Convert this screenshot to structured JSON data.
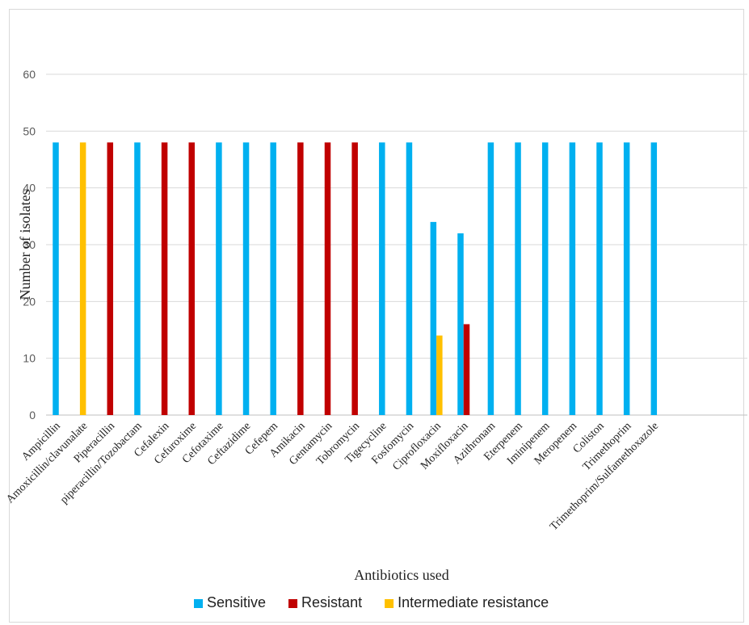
{
  "chart_data": {
    "type": "bar",
    "title": "",
    "xlabel": "Antibiotics  used",
    "ylabel": "Number of isolates",
    "ylim": [
      0,
      60
    ],
    "yticks": [
      0,
      10,
      20,
      30,
      40,
      50,
      60
    ],
    "grid": true,
    "legend_position": "bottom",
    "categories": [
      "Ampicillin",
      "Amoxicillin/clavunalate",
      "Piperacillin",
      "piperacillin/Tozobactam",
      "Cefalexin",
      "Cefuroxime",
      "Cefotaxime",
      "Ceftazidime",
      "Cefepem",
      "Amikacin",
      "Gentamycin",
      "Tobromycin",
      "Tigecycline",
      "Fosfomycin",
      "Ciprofloxacin",
      "Moxifloxacin",
      "Azithronam",
      "Eterpenem",
      "Iminipenem",
      "Meropenem",
      "Coliston",
      "Trimethoprim",
      "Trimethoprim/Sulfamethoxazole"
    ],
    "series": [
      {
        "name": "Sensitive",
        "color": "#00b0f0",
        "values": [
          48,
          0,
          0,
          48,
          0,
          0,
          48,
          48,
          48,
          0,
          0,
          0,
          48,
          48,
          34,
          32,
          48,
          48,
          48,
          48,
          48,
          48,
          48
        ]
      },
      {
        "name": "Resistant",
        "color": "#c00000",
        "values": [
          0,
          0,
          48,
          0,
          48,
          48,
          0,
          0,
          0,
          48,
          48,
          48,
          0,
          0,
          0,
          16,
          0,
          0,
          0,
          0,
          0,
          0,
          0
        ]
      },
      {
        "name": "Intermediate resistance",
        "color": "#ffc000",
        "values": [
          0,
          48,
          0,
          0,
          0,
          0,
          0,
          0,
          0,
          0,
          0,
          0,
          0,
          0,
          14,
          0,
          0,
          0,
          0,
          0,
          0,
          0,
          0
        ]
      }
    ]
  }
}
